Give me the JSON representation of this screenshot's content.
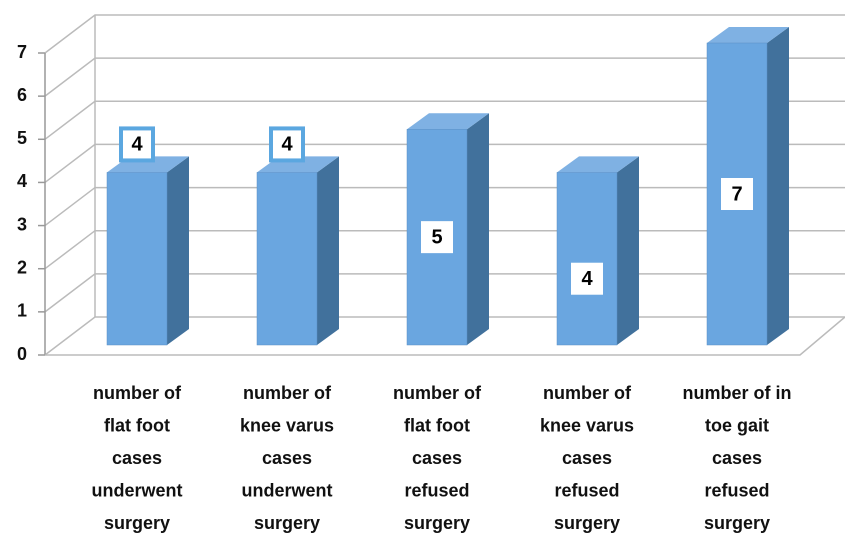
{
  "chart_data": {
    "type": "bar3d",
    "categories": [
      [
        "number of",
        "flat foot",
        "cases",
        "underwent",
        "surgery"
      ],
      [
        "number of",
        "knee varus",
        "cases",
        "underwent",
        "surgery"
      ],
      [
        "number of",
        "flat foot",
        "cases",
        "refused",
        "surgery"
      ],
      [
        "number of",
        "knee varus",
        "cases",
        "refused",
        "surgery"
      ],
      [
        "number of in",
        "toe gait",
        "cases",
        "refused",
        "surgery"
      ]
    ],
    "values": [
      4,
      4,
      5,
      4,
      7
    ],
    "color": "#5b9bd5",
    "ylim": [
      0,
      7
    ],
    "yticks": [
      0,
      1,
      2,
      3,
      4,
      5,
      6,
      7
    ],
    "grid": true
  }
}
